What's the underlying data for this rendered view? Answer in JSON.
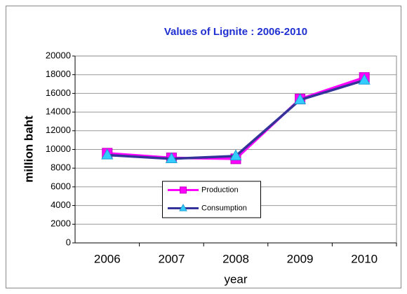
{
  "chart_data": {
    "type": "line",
    "title": "Values of Lignite : 2006-2010",
    "categories": [
      "2006",
      "2007",
      "2008",
      "2009",
      "2010"
    ],
    "series": [
      {
        "name": "Production",
        "color": "#ff00ff",
        "marker": "square",
        "marker_color": "#ff00ff",
        "values": [
          9600,
          9100,
          9000,
          15400,
          17700
        ]
      },
      {
        "name": "Consumption",
        "color": "#333399",
        "marker": "triangle",
        "marker_color": "#33ccff",
        "values": [
          9400,
          9000,
          9300,
          15300,
          17400
        ]
      }
    ],
    "x_label": "year",
    "y_label": "million baht",
    "ylim": [
      0,
      20000
    ],
    "yticks": [
      0,
      2000,
      4000,
      6000,
      8000,
      10000,
      12000,
      14000,
      16000,
      18000,
      20000
    ],
    "grid": true,
    "legend_position": "center"
  }
}
